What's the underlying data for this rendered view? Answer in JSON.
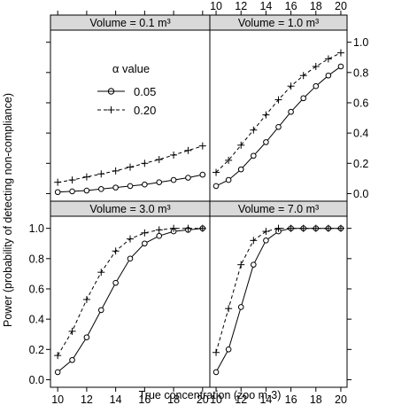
{
  "chart_data": {
    "type": "line",
    "xlabel": "True concentration (zoo m-3)",
    "ylabel": "Power (probability of detecting non-compliance)",
    "x": [
      10,
      11,
      12,
      13,
      14,
      15,
      16,
      17,
      18,
      19,
      20
    ],
    "xlim": [
      9.5,
      20.5
    ],
    "ylim": [
      -0.05,
      1.08
    ],
    "x_ticks": [
      "10",
      "12",
      "14",
      "16",
      "18",
      "20"
    ],
    "y_ticks": [
      "0.0",
      "0.2",
      "0.4",
      "0.6",
      "0.8",
      "1.0"
    ],
    "legend": {
      "title": "α value",
      "placement": "top-left panel",
      "entries": [
        "0.05",
        "0.20"
      ]
    },
    "panels": [
      {
        "title": "Volume = 0.1 m³",
        "series": [
          {
            "name": "0.05",
            "values": [
              0.01,
              0.015,
              0.02,
              0.03,
              0.04,
              0.05,
              0.06,
              0.075,
              0.09,
              0.105,
              0.125
            ]
          },
          {
            "name": "0.20",
            "values": [
              0.075,
              0.09,
              0.11,
              0.13,
              0.15,
              0.175,
              0.2,
              0.225,
              0.255,
              0.285,
              0.315
            ]
          }
        ]
      },
      {
        "title": "Volume = 1.0 m³",
        "series": [
          {
            "name": "0.05",
            "values": [
              0.05,
              0.09,
              0.16,
              0.25,
              0.34,
              0.44,
              0.54,
              0.63,
              0.71,
              0.78,
              0.84
            ]
          },
          {
            "name": "0.20",
            "values": [
              0.14,
              0.22,
              0.32,
              0.42,
              0.52,
              0.62,
              0.71,
              0.78,
              0.84,
              0.89,
              0.93
            ]
          }
        ]
      },
      {
        "title": "Volume = 3.0 m³",
        "series": [
          {
            "name": "0.05",
            "values": [
              0.05,
              0.13,
              0.28,
              0.46,
              0.64,
              0.8,
              0.9,
              0.95,
              0.98,
              0.99,
              1.0
            ]
          },
          {
            "name": "0.20",
            "values": [
              0.16,
              0.32,
              0.53,
              0.71,
              0.85,
              0.93,
              0.97,
              0.99,
              1.0,
              1.0,
              1.0
            ]
          }
        ]
      },
      {
        "title": "Volume = 7.0 m³",
        "series": [
          {
            "name": "0.05",
            "values": [
              0.05,
              0.2,
              0.48,
              0.76,
              0.92,
              0.98,
              1.0,
              1.0,
              1.0,
              1.0,
              1.0
            ]
          },
          {
            "name": "0.20",
            "values": [
              0.18,
              0.47,
              0.76,
              0.92,
              0.98,
              1.0,
              1.0,
              1.0,
              1.0,
              1.0,
              1.0
            ]
          }
        ]
      }
    ]
  }
}
